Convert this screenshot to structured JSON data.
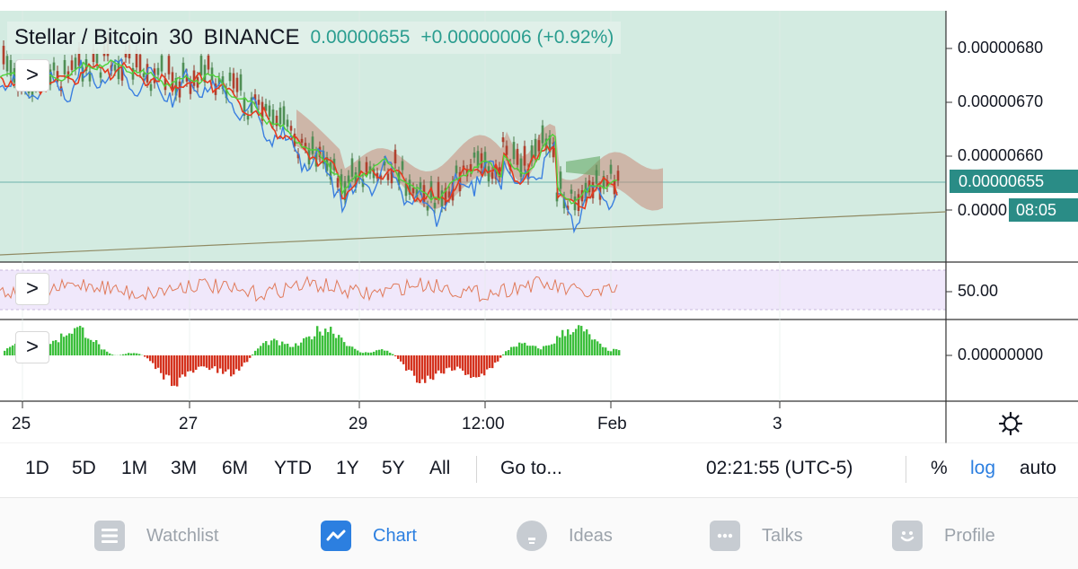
{
  "legend": {
    "symbol": "Stellar / Bitcoin",
    "interval": "30",
    "exchange": "BINANCE",
    "price": "0.00000655",
    "change": "+0.00000006 (+0.92%)"
  },
  "price_axis": [
    "0.00000680",
    "0.00000670",
    "0.00000660",
    "0.0000"
  ],
  "current_price": "0.00000655",
  "countdown": "08:05",
  "rsi_level": "50.00",
  "macd_level": "0.00000000",
  "time_axis": [
    "25",
    "27",
    "29",
    "12:00",
    "Feb",
    "3"
  ],
  "ranges": [
    "1D",
    "5D",
    "1M",
    "3M",
    "6M",
    "YTD",
    "1Y",
    "5Y",
    "All"
  ],
  "goto_label": "Go to...",
  "clock": "02:21:55 (UTC-5)",
  "scale_options": [
    "%",
    "log",
    "auto"
  ],
  "tabs": [
    "Watchlist",
    "Chart",
    "Ideas",
    "Talks",
    "Profile"
  ],
  "colors": {
    "background_zone": "#d3ebe1",
    "rsi_band": "#f0e8fb",
    "accent_teal": "#2a8c86",
    "active_tab": "#2c7fe0",
    "active_scale": "#2c7fe0"
  },
  "icons": {
    "pane_toggle": "chevron-right-icon",
    "settings": "gear-icon",
    "tabs": [
      "list-icon",
      "chart-line-icon",
      "lightbulb-icon",
      "chat-bubble-icon",
      "smiley-icon"
    ]
  }
}
